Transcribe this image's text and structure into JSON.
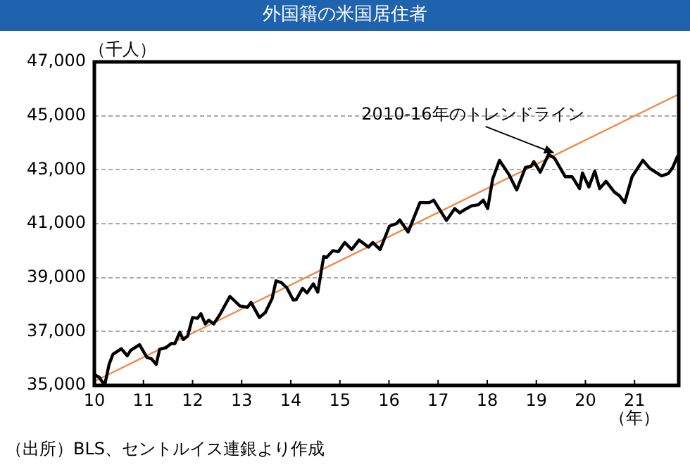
{
  "chart_data": {
    "type": "line",
    "title": "外国籍の米国居住者",
    "ylabel": "（千人）",
    "xlabel": "（年）",
    "xlim": [
      2010,
      2021.9
    ],
    "xticks": [
      {
        "value": 2010,
        "label": "10"
      },
      {
        "value": 2011,
        "label": "11"
      },
      {
        "value": 2012,
        "label": "12"
      },
      {
        "value": 2013,
        "label": "13"
      },
      {
        "value": 2014,
        "label": "14"
      },
      {
        "value": 2015,
        "label": "15"
      },
      {
        "value": 2016,
        "label": "16"
      },
      {
        "value": 2017,
        "label": "17"
      },
      {
        "value": 2018,
        "label": "18"
      },
      {
        "value": 2019,
        "label": "19"
      },
      {
        "value": 2020,
        "label": "20"
      },
      {
        "value": 2021,
        "label": "21"
      }
    ],
    "ylim": [
      35000,
      47000
    ],
    "yticks": [
      {
        "value": 35000,
        "label": "35,000"
      },
      {
        "value": 37000,
        "label": "37,000"
      },
      {
        "value": 39000,
        "label": "39,000"
      },
      {
        "value": 41000,
        "label": "41,000"
      },
      {
        "value": 43000,
        "label": "43,000"
      },
      {
        "value": 45000,
        "label": "45,000"
      },
      {
        "value": 47000,
        "label": "47,000"
      }
    ],
    "grid": "y",
    "legend": false,
    "marker": "none",
    "series": [
      {
        "color": "#000000",
        "line_style": "solid",
        "x": [
          2010.0,
          2010.1,
          2010.21,
          2010.3,
          2010.38,
          2010.55,
          2010.67,
          2010.74,
          2010.92,
          2011.07,
          2011.16,
          2011.26,
          2011.33,
          2011.45,
          2011.57,
          2011.64,
          2011.74,
          2011.81,
          2011.9,
          2012.0,
          2012.1,
          2012.17,
          2012.26,
          2012.33,
          2012.43,
          2012.55,
          2012.76,
          2012.86,
          2012.97,
          2013.12,
          2013.19,
          2013.36,
          2013.48,
          2013.62,
          2013.7,
          2013.81,
          2013.92,
          2014.05,
          2014.11,
          2014.24,
          2014.33,
          2014.46,
          2014.55,
          2014.67,
          2014.73,
          2014.86,
          2014.97,
          2015.1,
          2015.24,
          2015.39,
          2015.58,
          2015.67,
          2015.82,
          2016.01,
          2016.15,
          2016.22,
          2016.39,
          2016.63,
          2016.82,
          2016.91,
          2017.17,
          2017.34,
          2017.44,
          2017.54,
          2017.68,
          2017.82,
          2017.92,
          2018.01,
          2018.11,
          2018.25,
          2018.44,
          2018.6,
          2018.78,
          2018.89,
          2018.95,
          2019.08,
          2019.25,
          2019.37,
          2019.59,
          2019.73,
          2019.88,
          2019.94,
          2020.07,
          2020.19,
          2020.29,
          2020.42,
          2020.59,
          2020.69,
          2020.8,
          2020.95,
          2021.17,
          2021.31,
          2021.55,
          2021.69,
          2021.78,
          2021.88
        ],
        "values": [
          35400,
          35300,
          35000,
          35780,
          36160,
          36360,
          36100,
          36300,
          36510,
          36040,
          35990,
          35780,
          36340,
          36390,
          36560,
          36550,
          36970,
          36700,
          36830,
          37520,
          37490,
          37660,
          37280,
          37420,
          37280,
          37610,
          38300,
          38130,
          37940,
          37900,
          38080,
          37520,
          37700,
          38220,
          38880,
          38810,
          38620,
          38170,
          38180,
          38600,
          38430,
          38770,
          38460,
          39780,
          39750,
          40000,
          39960,
          40300,
          40040,
          40390,
          40130,
          40300,
          40040,
          40910,
          41000,
          41140,
          40690,
          41780,
          41780,
          41870,
          41120,
          41560,
          41400,
          41520,
          41660,
          41700,
          41870,
          41560,
          42650,
          43350,
          42830,
          42250,
          43090,
          43120,
          43300,
          42910,
          43570,
          43430,
          42740,
          42740,
          42300,
          42880,
          42360,
          42950,
          42300,
          42570,
          42170,
          42040,
          41780,
          42740,
          43350,
          43050,
          42770,
          42860,
          43090,
          43520
        ]
      },
      {
        "color": "#f0894a",
        "line_style": "solid",
        "x": [
          2010,
          2021.9
        ],
        "values": [
          35150,
          45800
        ]
      }
    ],
    "annotations": [
      {
        "text": "2010-16年のトレンドライン",
        "x": 2019.4,
        "y": 43560
      },
      "（出所）BLS、セントルイス連銀より作成"
    ]
  }
}
